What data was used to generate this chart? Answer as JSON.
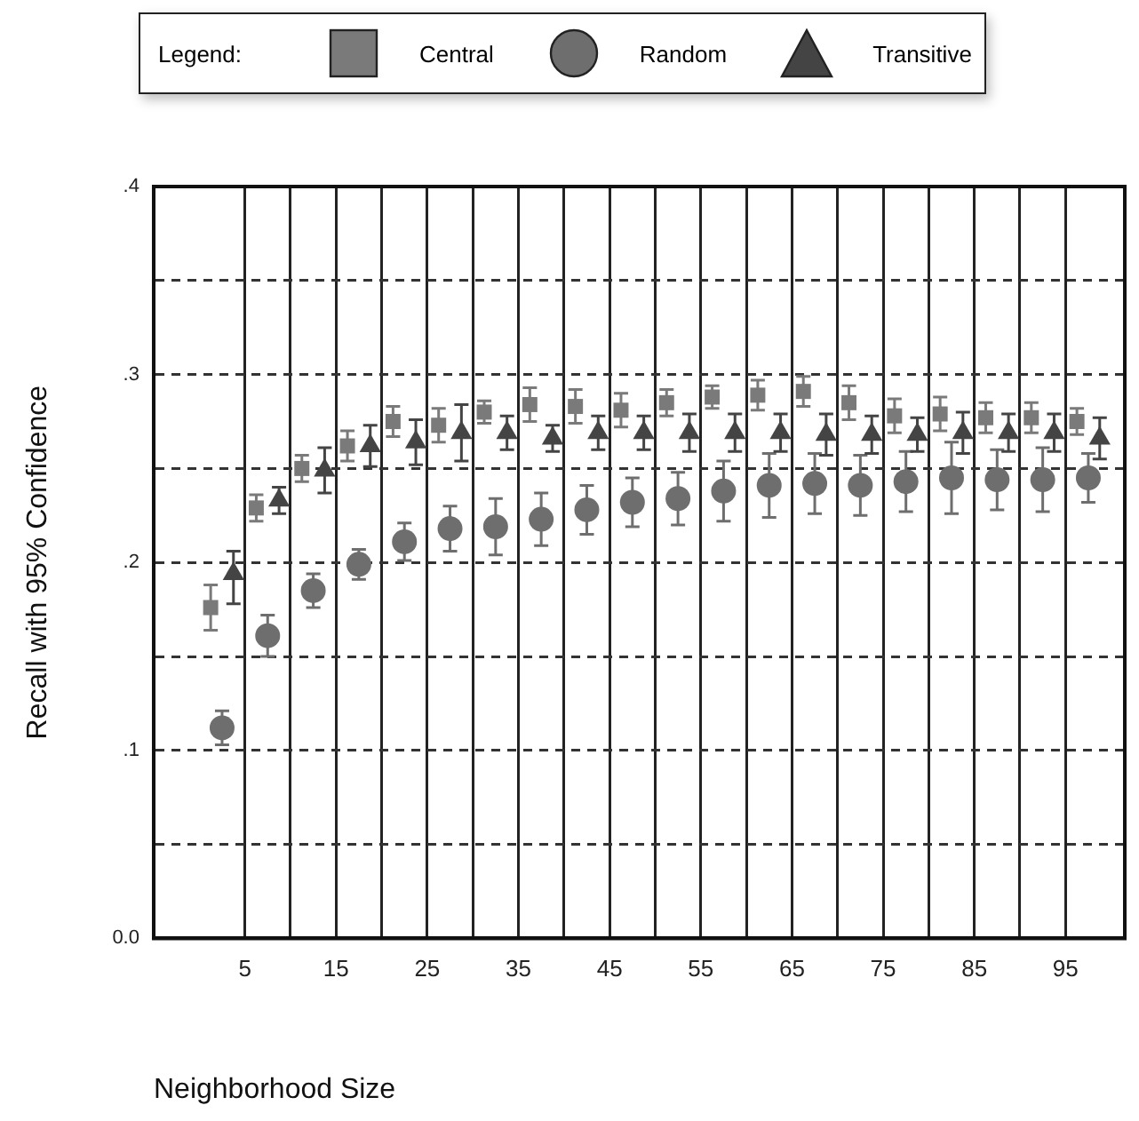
{
  "chart_data": {
    "type": "scatter",
    "xlabel": "Neighborhood Size",
    "ylabel": "Recall with 95% Confidence",
    "legend_title": "Legend:",
    "legend": "top",
    "grid": true,
    "xlim": [
      -5,
      101.5
    ],
    "xticks": [
      5,
      {
        "value": 10,
        "label": null
      },
      15,
      {
        "value": 20,
        "label": null
      },
      25,
      {
        "value": 30,
        "label": null
      },
      35,
      {
        "value": 40,
        "label": null
      },
      45,
      {
        "value": 50,
        "label": null
      },
      55,
      {
        "value": 60,
        "label": null
      },
      65,
      {
        "value": 70,
        "label": null
      },
      75,
      {
        "value": 80,
        "label": null
      },
      85,
      {
        "value": 90,
        "label": null
      },
      95
    ],
    "ylim": [
      0,
      0.4
    ],
    "yticks": [
      {
        "value": 0,
        "label": "0.0"
      },
      {
        "value": 0.05,
        "label": null
      },
      {
        "value": 0.1,
        "label": ".1"
      },
      {
        "value": 0.15,
        "label": null
      },
      {
        "value": 0.2,
        "label": ".2"
      },
      {
        "value": 0.25,
        "label": null
      },
      {
        "value": 0.3,
        "label": ".3"
      },
      {
        "value": 0.35,
        "label": null
      },
      {
        "value": 0.4,
        "label": ".4"
      }
    ],
    "series": [
      {
        "name": "Central",
        "color": "#7a7a7a",
        "marker": "square",
        "x": [
          1.25,
          6.25,
          11.25,
          16.25,
          21.25,
          26.25,
          31.25,
          36.25,
          41.25,
          46.25,
          51.25,
          56.25,
          61.25,
          66.25,
          71.25,
          76.25,
          81.25,
          86.25,
          91.25,
          96.25
        ],
        "values": [
          0.176,
          0.229,
          0.25,
          0.262,
          0.275,
          0.273,
          0.28,
          0.284,
          0.283,
          0.281,
          0.285,
          0.288,
          0.289,
          0.291,
          0.285,
          0.278,
          0.279,
          0.277,
          0.277,
          0.275
        ],
        "errors": [
          0.012,
          0.007,
          0.007,
          0.008,
          0.008,
          0.009,
          0.006,
          0.009,
          0.009,
          0.009,
          0.007,
          0.006,
          0.008,
          0.008,
          0.009,
          0.009,
          0.009,
          0.008,
          0.008,
          0.007
        ]
      },
      {
        "name": "Random",
        "color": "#6e6e6e",
        "marker": "circle",
        "x": [
          2.5,
          7.5,
          12.5,
          17.5,
          22.5,
          27.5,
          32.5,
          37.5,
          42.5,
          47.5,
          52.5,
          57.5,
          62.5,
          67.5,
          72.5,
          77.5,
          82.5,
          87.5,
          92.5,
          97.5
        ],
        "values": [
          0.112,
          0.161,
          0.185,
          0.199,
          0.211,
          0.218,
          0.219,
          0.223,
          0.228,
          0.232,
          0.234,
          0.238,
          0.241,
          0.242,
          0.241,
          0.243,
          0.245,
          0.244,
          0.244,
          0.245
        ],
        "errors": [
          0.009,
          0.011,
          0.009,
          0.008,
          0.01,
          0.012,
          0.015,
          0.014,
          0.013,
          0.013,
          0.014,
          0.016,
          0.017,
          0.016,
          0.016,
          0.016,
          0.019,
          0.016,
          0.017,
          0.013
        ]
      },
      {
        "name": "Transitive",
        "color": "#444444",
        "marker": "triangle",
        "x": [
          3.75,
          8.75,
          13.75,
          18.75,
          23.75,
          28.75,
          33.75,
          38.75,
          43.75,
          48.75,
          53.75,
          58.75,
          63.75,
          68.75,
          73.75,
          78.75,
          83.75,
          88.75,
          93.75,
          98.75
        ],
        "values": [
          0.194,
          0.233,
          0.249,
          0.262,
          0.264,
          0.269,
          0.269,
          0.266,
          0.269,
          0.269,
          0.269,
          0.269,
          0.269,
          0.268,
          0.268,
          0.268,
          0.269,
          0.269,
          0.269,
          0.266
        ],
        "errors": [
          [
            0.178,
            0.206
          ],
          0.007,
          0.012,
          0.011,
          0.012,
          0.015,
          0.009,
          0.007,
          0.009,
          0.009,
          0.01,
          0.01,
          0.01,
          0.011,
          0.01,
          0.009,
          0.011,
          0.01,
          0.01,
          0.011
        ]
      }
    ]
  }
}
